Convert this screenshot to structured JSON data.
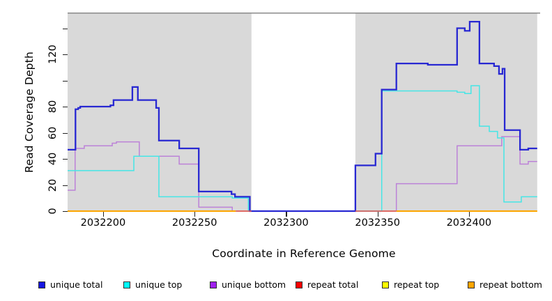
{
  "figure": {
    "xlabel": "Coordinate in Reference Genome",
    "ylabel": "Read Coverage Depth"
  },
  "legend": {
    "items": [
      {
        "label": "unique total",
        "color": "#1515E0"
      },
      {
        "label": "unique top",
        "color": "#00FFFF"
      },
      {
        "label": "unique bottom",
        "color": "#A020F0"
      },
      {
        "label": "repeat total",
        "color": "#FF0000"
      },
      {
        "label": "repeat top",
        "color": "#FFFF00"
      },
      {
        "label": "repeat bottom",
        "color": "#FFA500"
      }
    ]
  },
  "chart_data": {
    "type": "line",
    "subtype": "step",
    "title": "",
    "xlabel": "Coordinate in Reference Genome",
    "ylabel": "Read Coverage Depth",
    "xlim": [
      2032180.6,
      2032438.9
    ],
    "ylim": [
      0,
      152
    ],
    "grid": false,
    "legend_position": "bottom",
    "plot_background": "#FFFFFF",
    "region_background": "#D9D9D9",
    "top_border_color": "#8A8A8A",
    "background_regions": [
      {
        "start": 2032180.6,
        "end": 2032281.1
      },
      {
        "start": 2032337.9,
        "end": 2032437.3
      }
    ],
    "x_ticks": [
      {
        "value": 2032200,
        "label": "2032200"
      },
      {
        "value": 2032250,
        "label": "2032250"
      },
      {
        "value": 2032300,
        "label": "2032300"
      },
      {
        "value": 2032350,
        "label": "2032350"
      },
      {
        "value": 2032400,
        "label": "2032400"
      }
    ],
    "y_ticks": [
      {
        "value": 0,
        "label": "0"
      },
      {
        "value": 20,
        "label": "20"
      },
      {
        "value": 40,
        "label": "40"
      },
      {
        "value": 60,
        "label": "60"
      },
      {
        "value": 80,
        "label": "80"
      },
      {
        "value": 100,
        "label": ""
      },
      {
        "value": 120,
        "label": "120"
      },
      {
        "value": 140,
        "label": ""
      }
    ],
    "series": [
      {
        "name": "repeat top",
        "color": "#FFFF00",
        "width": 1.5,
        "end": 2032437.3,
        "steps": [
          [
            2032180.6,
            0
          ]
        ]
      },
      {
        "name": "unique bottom",
        "color": "#BC82D8",
        "width": 1.5,
        "end": 2032437.3,
        "steps": [
          [
            2032180.6,
            16
          ],
          [
            2032184.7,
            48
          ],
          [
            2032189.7,
            50
          ],
          [
            2032205.0,
            52
          ],
          [
            2032207.3,
            53
          ],
          [
            2032219.8,
            42
          ],
          [
            2032241.6,
            36
          ],
          [
            2032252.3,
            3
          ],
          [
            2032270.6,
            0
          ],
          [
            2032360.3,
            21
          ],
          [
            2032393.5,
            50
          ],
          [
            2032417.9,
            57
          ],
          [
            2032427.9,
            36
          ],
          [
            2032432.4,
            38
          ]
        ]
      },
      {
        "name": "unique top",
        "color": "#45E6E6",
        "width": 1.5,
        "end": 2032437.3,
        "steps": [
          [
            2032180.6,
            31
          ],
          [
            2032216.8,
            42
          ],
          [
            2032230.5,
            11
          ],
          [
            2032270.6,
            10
          ],
          [
            2032279.4,
            0
          ],
          [
            2032352.3,
            92
          ],
          [
            2032393.5,
            91
          ],
          [
            2032397.7,
            90
          ],
          [
            2032401.1,
            96
          ],
          [
            2032405.7,
            65
          ],
          [
            2032411.1,
            61
          ],
          [
            2032415.6,
            56
          ],
          [
            2032419.1,
            7
          ],
          [
            2032428.6,
            11
          ]
        ]
      },
      {
        "name": "unique total",
        "color": "#2828D2",
        "width": 2.3,
        "end": 2032437.3,
        "steps": [
          [
            2032180.6,
            47
          ],
          [
            2032184.9,
            78
          ],
          [
            2032186.4,
            79
          ],
          [
            2032187.5,
            80
          ],
          [
            2032204.0,
            81
          ],
          [
            2032205.7,
            85
          ],
          [
            2032216.0,
            95
          ],
          [
            2032219.0,
            85
          ],
          [
            2032229.0,
            79
          ],
          [
            2032230.5,
            54
          ],
          [
            2032241.6,
            48
          ],
          [
            2032252.3,
            15
          ],
          [
            2032270.2,
            13
          ],
          [
            2032272.1,
            11
          ],
          [
            2032280.2,
            0
          ],
          [
            2032337.9,
            35
          ],
          [
            2032348.9,
            44
          ],
          [
            2032352.3,
            93
          ],
          [
            2032360.3,
            113
          ],
          [
            2032377.5,
            112
          ],
          [
            2032393.5,
            140
          ],
          [
            2032397.7,
            138
          ],
          [
            2032400.4,
            145
          ],
          [
            2032405.7,
            113
          ],
          [
            2032413.7,
            111
          ],
          [
            2032416.4,
            105
          ],
          [
            2032418.3,
            109
          ],
          [
            2032419.5,
            62
          ],
          [
            2032427.9,
            47
          ],
          [
            2032432.4,
            48
          ]
        ]
      },
      {
        "name": "repeat total",
        "color": "#E05050",
        "width": 1.5,
        "end": 2032281.1,
        "steps": [
          [
            2032272.5,
            0
          ]
        ]
      },
      {
        "name": "repeat total",
        "color": "#E05050",
        "width": 1.5,
        "end": 2032360.3,
        "steps": [
          [
            2032337.9,
            0
          ]
        ]
      },
      {
        "name": "repeat bottom",
        "color": "#FFA500",
        "width": 2,
        "end": 2032272.5,
        "steps": [
          [
            2032180.6,
            0
          ]
        ]
      },
      {
        "name": "repeat bottom",
        "color": "#FFA500",
        "width": 2,
        "end": 2032437.3,
        "steps": [
          [
            2032360.3,
            0
          ]
        ]
      }
    ]
  }
}
